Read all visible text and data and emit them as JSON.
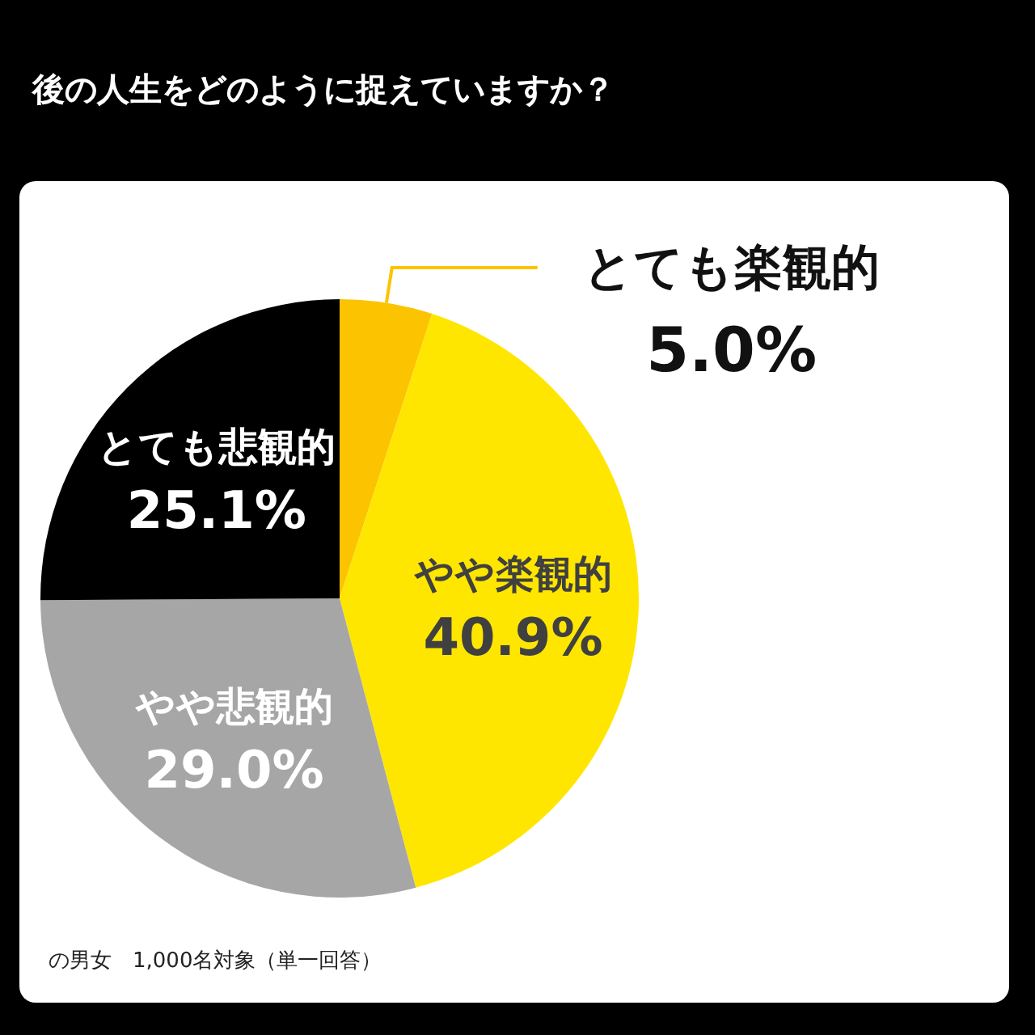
{
  "chart_data": {
    "type": "pie",
    "title": "後の人生をどのように捉えていますか？",
    "categories": [
      "とても楽観的",
      "やや楽観的",
      "やや悲観的",
      "とても悲観的"
    ],
    "values": [
      5.0,
      40.9,
      29.0,
      25.1
    ],
    "colors": [
      "#fcc400",
      "#ffe600",
      "#a6a6a6",
      "#000000"
    ],
    "value_labels": [
      "5.0%",
      "40.9%",
      "29.0%",
      "25.1%"
    ],
    "annotations": [
      "の男女　1,000名対象（単一回答）"
    ]
  }
}
